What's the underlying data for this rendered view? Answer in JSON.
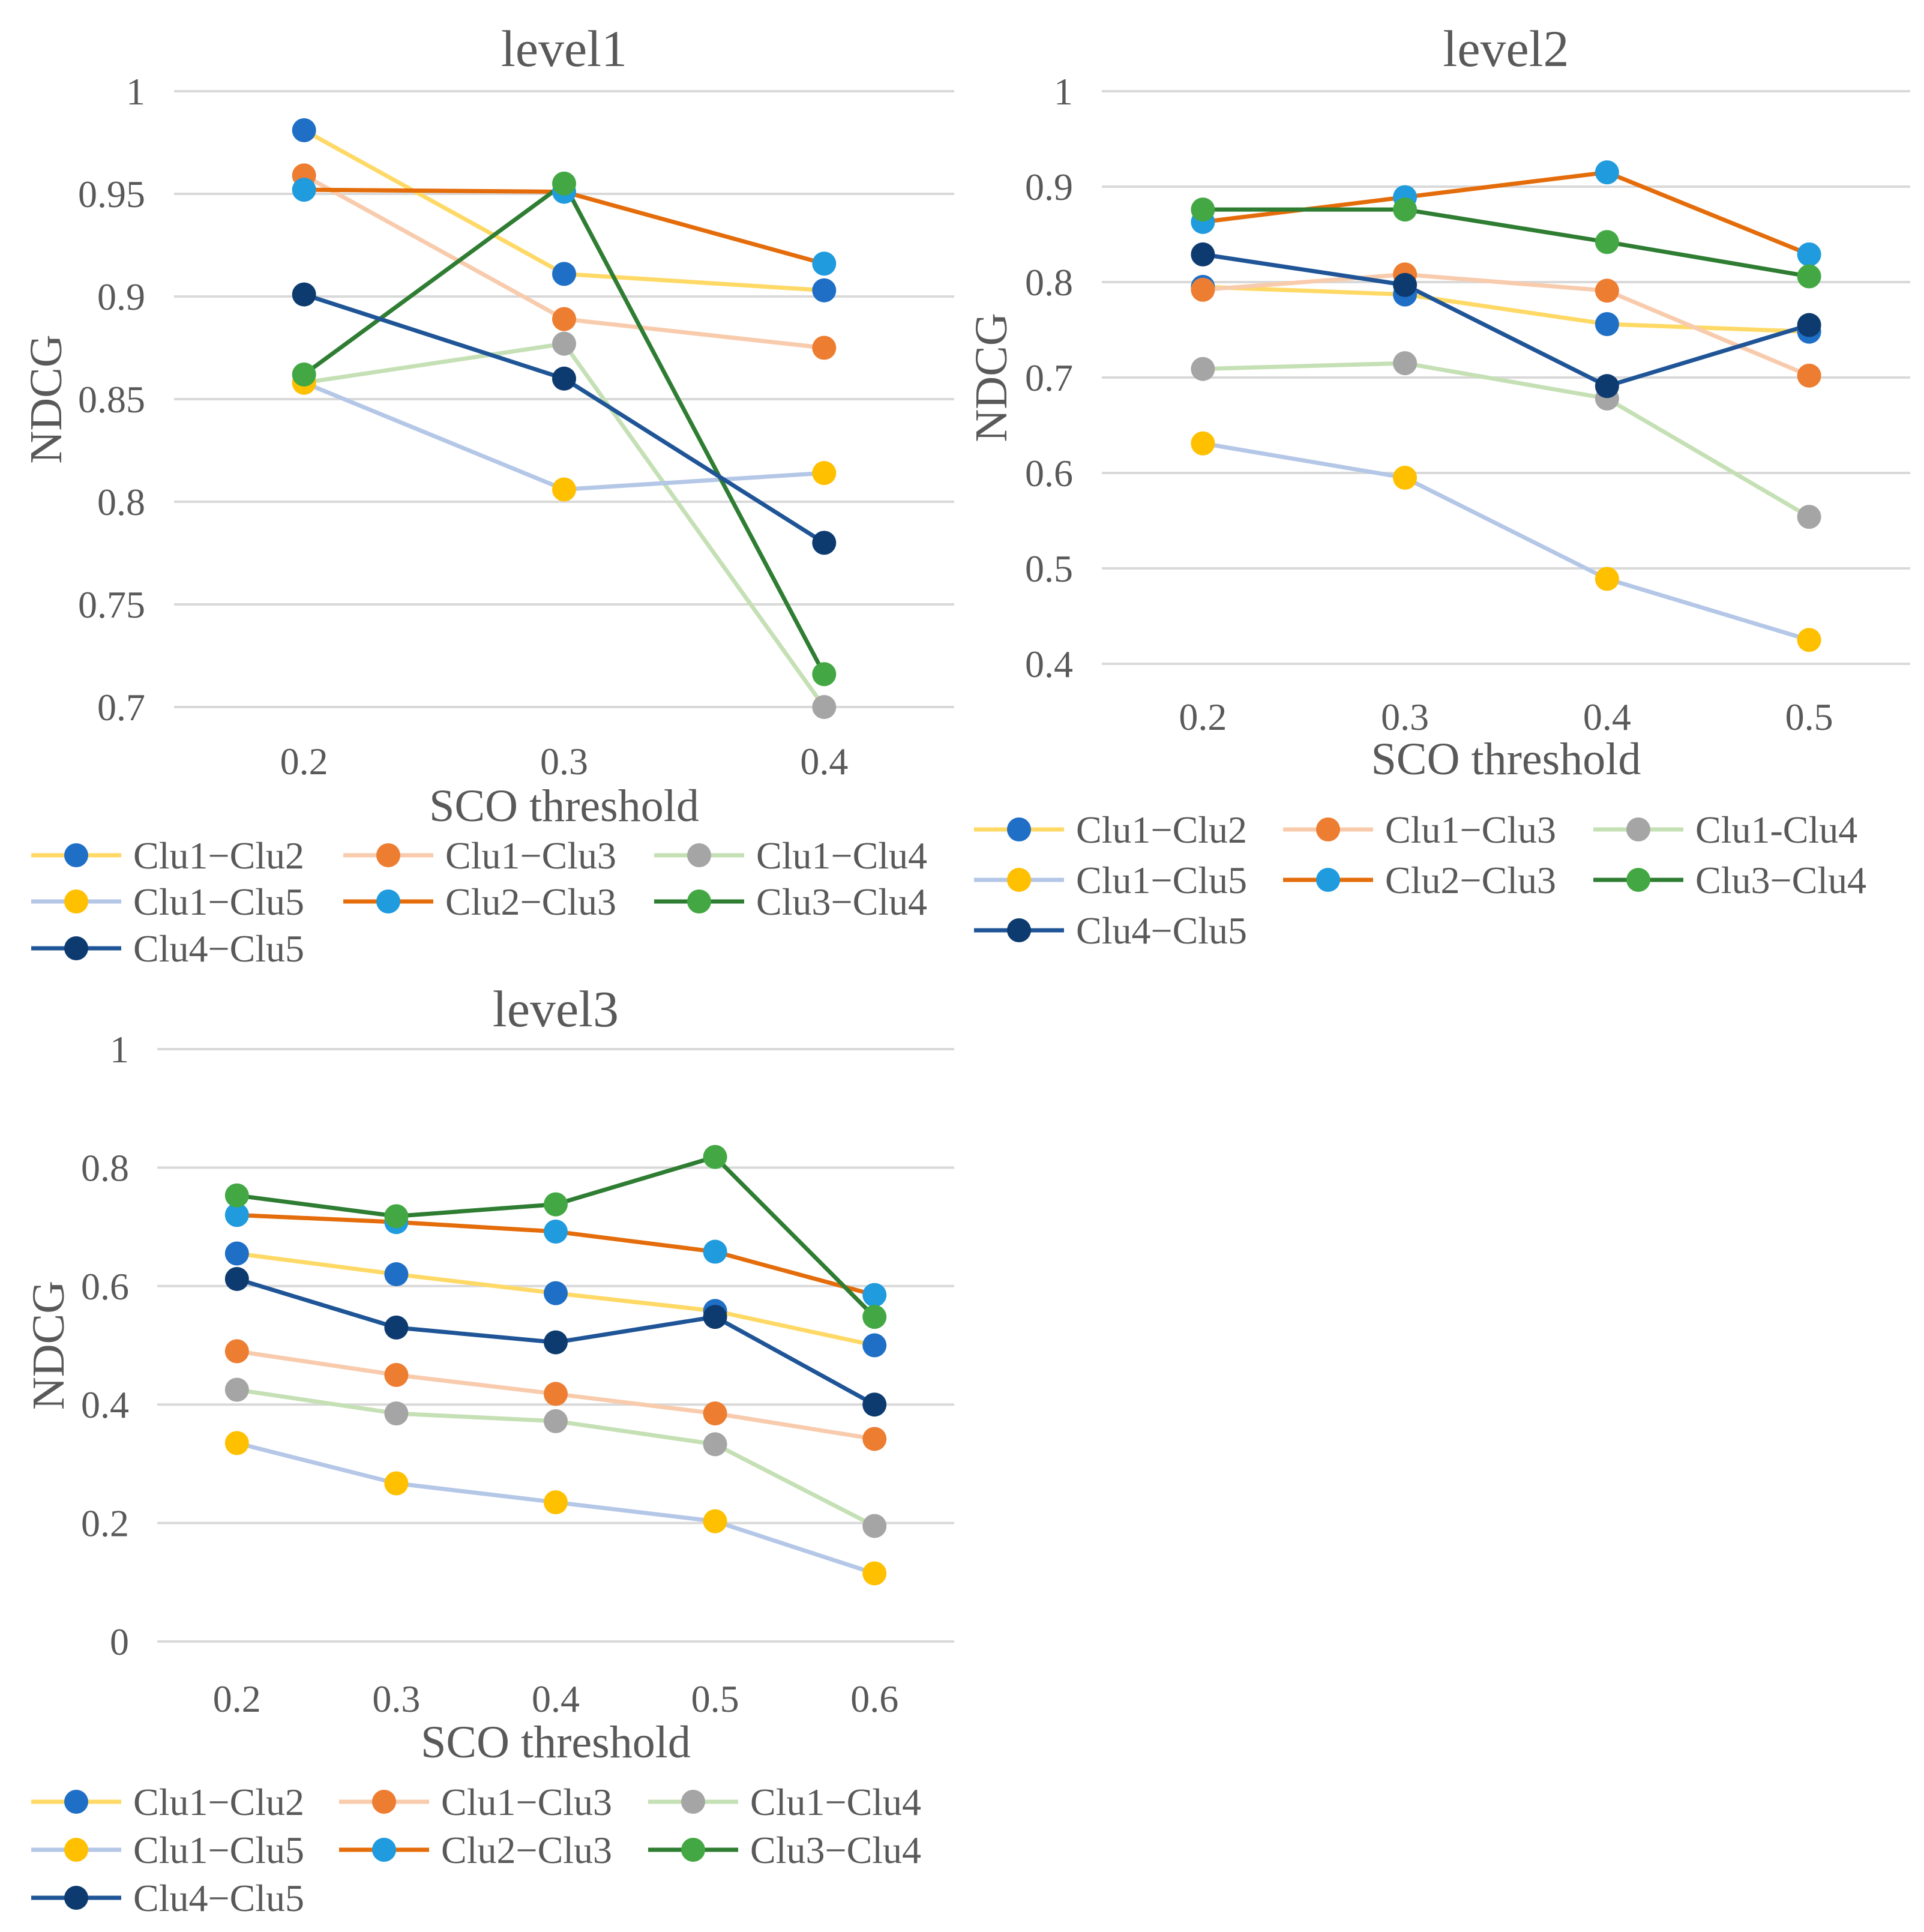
{
  "chart_data": [
    {
      "type": "line",
      "title": "level1",
      "xlabel": "SCO threshold",
      "ylabel": "NDCG",
      "categories": [
        "0.2",
        "0.3",
        "0.4"
      ],
      "ylim": [
        0.7,
        1
      ],
      "yticks": [
        "0.7",
        "0.75",
        "0.8",
        "0.85",
        "0.9",
        "0.95",
        "1"
      ],
      "grid": true,
      "legend": "bottom",
      "series": [
        {
          "name": "Clu1−Clu2",
          "line_color": "#FFD966",
          "marker_color": "#1F6FC6",
          "values": [
            0.981,
            0.911,
            0.903
          ]
        },
        {
          "name": "Clu1−Clu3",
          "line_color": "#F8CBAD",
          "marker_color": "#ED7D31",
          "values": [
            0.959,
            0.889,
            0.875
          ]
        },
        {
          "name": "Clu1−Clu4",
          "line_color": "#C5E0B4",
          "marker_color": "#A5A5A5",
          "values": [
            0.858,
            0.877,
            0.7
          ]
        },
        {
          "name": "Clu1−Clu5",
          "line_color": "#B4C7E7",
          "marker_color": "#FFC000",
          "values": [
            0.858,
            0.806,
            0.814
          ]
        },
        {
          "name": "Clu2−Clu3",
          "line_color": "#E46C0A",
          "marker_color": "#1F9BDE",
          "values": [
            0.952,
            0.951,
            0.916
          ]
        },
        {
          "name": "Clu3−Clu4",
          "line_color": "#2E7D32",
          "marker_color": "#43A843",
          "values": [
            0.862,
            0.955,
            0.716
          ]
        },
        {
          "name": "Clu4−Clu5",
          "line_color": "#1F5597",
          "marker_color": "#0D3B70",
          "values": [
            0.901,
            0.86,
            0.78
          ]
        }
      ]
    },
    {
      "type": "line",
      "title": "level2",
      "xlabel": "SCO threshold",
      "ylabel": "NDCG",
      "categories": [
        "0.2",
        "0.3",
        "0.4",
        "0.5"
      ],
      "ylim": [
        0.4,
        1
      ],
      "yticks": [
        "0.4",
        "0.5",
        "0.6",
        "0.7",
        "0.8",
        "0.9",
        "1"
      ],
      "grid": true,
      "legend": "bottom",
      "series": [
        {
          "name": "Clu1−Clu2",
          "line_color": "#FFD966",
          "marker_color": "#1F6FC6",
          "values": [
            0.795,
            0.787,
            0.756,
            0.748
          ]
        },
        {
          "name": "Clu1−Clu3",
          "line_color": "#F8CBAD",
          "marker_color": "#ED7D31",
          "values": [
            0.792,
            0.808,
            0.791,
            0.702
          ]
        },
        {
          "name": "Clu1-Clu4",
          "line_color": "#C5E0B4",
          "marker_color": "#A5A5A5",
          "values": [
            0.709,
            0.715,
            0.678,
            0.554
          ]
        },
        {
          "name": "Clu1−Clu5",
          "line_color": "#B4C7E7",
          "marker_color": "#FFC000",
          "values": [
            0.631,
            0.595,
            0.489,
            0.425
          ]
        },
        {
          "name": "Clu2−Clu3",
          "line_color": "#E46C0A",
          "marker_color": "#1F9BDE",
          "values": [
            0.863,
            0.889,
            0.915,
            0.829
          ]
        },
        {
          "name": "Clu3−Clu4",
          "line_color": "#2E7D32",
          "marker_color": "#43A843",
          "values": [
            0.876,
            0.876,
            0.842,
            0.806
          ]
        },
        {
          "name": "Clu4−Clu5",
          "line_color": "#1F5597",
          "marker_color": "#0D3B70",
          "values": [
            0.829,
            0.797,
            0.691,
            0.755
          ]
        }
      ]
    },
    {
      "type": "line",
      "title": "level3",
      "xlabel": "SCO threshold",
      "ylabel": "NDCG",
      "categories": [
        "0.2",
        "0.3",
        "0.4",
        "0.5",
        "0.6"
      ],
      "ylim": [
        0,
        1
      ],
      "yticks": [
        "0",
        "0.2",
        "0.4",
        "0.6",
        "0.8",
        "1"
      ],
      "grid": true,
      "legend": "bottom",
      "series": [
        {
          "name": "Clu1−Clu2",
          "line_color": "#FFD966",
          "marker_color": "#1F6FC6",
          "values": [
            0.655,
            0.62,
            0.588,
            0.558,
            0.5
          ]
        },
        {
          "name": "Clu1−Clu3",
          "line_color": "#F8CBAD",
          "marker_color": "#ED7D31",
          "values": [
            0.49,
            0.45,
            0.418,
            0.385,
            0.342
          ]
        },
        {
          "name": "Clu1−Clu4",
          "line_color": "#C5E0B4",
          "marker_color": "#A5A5A5",
          "values": [
            0.425,
            0.385,
            0.372,
            0.333,
            0.195
          ]
        },
        {
          "name": "Clu1−Clu5",
          "line_color": "#B4C7E7",
          "marker_color": "#FFC000",
          "values": [
            0.335,
            0.267,
            0.235,
            0.203,
            0.115
          ]
        },
        {
          "name": "Clu2−Clu3",
          "line_color": "#E46C0A",
          "marker_color": "#1F9BDE",
          "values": [
            0.72,
            0.708,
            0.692,
            0.658,
            0.585
          ]
        },
        {
          "name": "Clu3−Clu4",
          "line_color": "#2E7D32",
          "marker_color": "#43A843",
          "values": [
            0.753,
            0.718,
            0.738,
            0.818,
            0.548
          ]
        },
        {
          "name": "Clu4−Clu5",
          "line_color": "#1F5597",
          "marker_color": "#0D3B70",
          "values": [
            0.612,
            0.53,
            0.505,
            0.548,
            0.4
          ]
        }
      ]
    }
  ]
}
